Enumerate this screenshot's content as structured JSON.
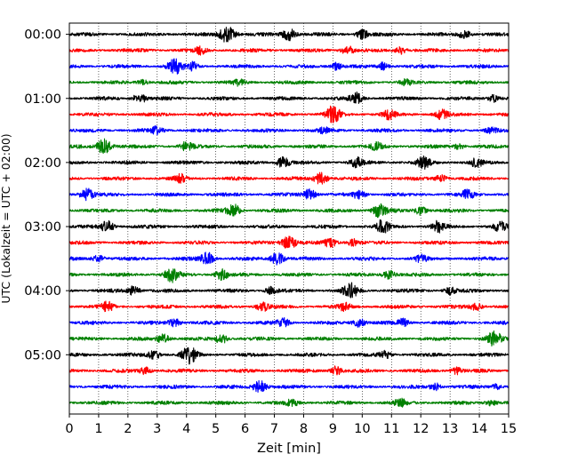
{
  "chart_data": {
    "type": "line",
    "title": "",
    "xlabel": "Zeit  [min]",
    "ylabel": "UTC (Lokalzeit = UTC + 02:00)",
    "xlim": [
      0,
      15
    ],
    "x_ticks": [
      0,
      1,
      2,
      3,
      4,
      5,
      6,
      7,
      8,
      9,
      10,
      11,
      12,
      13,
      14,
      15
    ],
    "x_tick_labels": [
      "0",
      "1",
      "2",
      "3",
      "4",
      "5",
      "6",
      "7",
      "8",
      "9",
      "10",
      "11",
      "12",
      "13",
      "14",
      "15"
    ],
    "ylim_rows": [
      -0.7,
      23.7
    ],
    "y_ticks": [
      {
        "row": 0,
        "label": "00:00"
      },
      {
        "row": 4,
        "label": "01:00"
      },
      {
        "row": 8,
        "label": "02:00"
      },
      {
        "row": 12,
        "label": "03:00"
      },
      {
        "row": 16,
        "label": "04:00"
      },
      {
        "row": 20,
        "label": "05:00"
      }
    ],
    "grid": "vertical dotted at each minute",
    "row_interval_minutes": 15,
    "color_cycle": [
      "#000000",
      "#ff0000",
      "#0000ff",
      "#008000"
    ],
    "series": [
      {
        "start": "00:00",
        "color": "#000000",
        "bursts": [
          [
            5.4,
            1.0
          ],
          [
            7.5,
            0.7
          ],
          [
            10.0,
            0.5
          ],
          [
            13.5,
            0.5
          ]
        ]
      },
      {
        "start": "00:15",
        "color": "#ff0000",
        "bursts": [
          [
            4.5,
            0.4
          ],
          [
            9.5,
            0.5
          ],
          [
            11.3,
            0.4
          ]
        ]
      },
      {
        "start": "00:30",
        "color": "#0000ff",
        "bursts": [
          [
            3.6,
            0.8
          ],
          [
            4.2,
            0.4
          ],
          [
            9.1,
            0.4
          ],
          [
            10.7,
            0.4
          ]
        ]
      },
      {
        "start": "00:45",
        "color": "#008000",
        "bursts": [
          [
            2.5,
            0.3
          ],
          [
            5.8,
            0.3
          ],
          [
            11.5,
            0.3
          ]
        ]
      },
      {
        "start": "01:00",
        "color": "#000000",
        "bursts": [
          [
            2.4,
            0.6
          ],
          [
            9.8,
            0.6
          ],
          [
            14.5,
            0.4
          ]
        ]
      },
      {
        "start": "01:15",
        "color": "#ff0000",
        "bursts": [
          [
            9.0,
            0.9
          ],
          [
            10.9,
            0.5
          ],
          [
            12.7,
            0.5
          ]
        ]
      },
      {
        "start": "01:30",
        "color": "#0000ff",
        "bursts": [
          [
            3.0,
            0.4
          ],
          [
            8.7,
            0.3
          ],
          [
            14.4,
            0.3
          ]
        ]
      },
      {
        "start": "01:45",
        "color": "#008000",
        "bursts": [
          [
            1.2,
            0.9
          ],
          [
            4.0,
            0.5
          ],
          [
            10.5,
            0.4
          ],
          [
            13.3,
            0.3
          ]
        ]
      },
      {
        "start": "02:00",
        "color": "#000000",
        "bursts": [
          [
            7.3,
            0.6
          ],
          [
            9.8,
            0.5
          ],
          [
            12.1,
            0.6
          ],
          [
            13.9,
            0.5
          ]
        ]
      },
      {
        "start": "02:15",
        "color": "#ff0000",
        "bursts": [
          [
            3.8,
            0.4
          ],
          [
            8.6,
            0.7
          ],
          [
            12.7,
            0.4
          ]
        ]
      },
      {
        "start": "02:30",
        "color": "#0000ff",
        "bursts": [
          [
            0.6,
            0.7
          ],
          [
            8.2,
            0.6
          ],
          [
            9.9,
            0.5
          ],
          [
            13.6,
            0.5
          ]
        ]
      },
      {
        "start": "02:45",
        "color": "#008000",
        "bursts": [
          [
            5.6,
            0.7
          ],
          [
            10.6,
            0.8
          ],
          [
            12.0,
            0.5
          ]
        ]
      },
      {
        "start": "03:00",
        "color": "#000000",
        "bursts": [
          [
            1.3,
            0.6
          ],
          [
            10.7,
            0.7
          ],
          [
            12.6,
            0.6
          ],
          [
            14.7,
            0.5
          ]
        ]
      },
      {
        "start": "03:15",
        "color": "#ff0000",
        "bursts": [
          [
            7.5,
            0.8
          ],
          [
            8.9,
            0.5
          ],
          [
            9.7,
            0.4
          ]
        ]
      },
      {
        "start": "03:30",
        "color": "#0000ff",
        "bursts": [
          [
            4.7,
            0.7
          ],
          [
            7.1,
            0.7
          ],
          [
            1.0,
            0.4
          ],
          [
            12.0,
            0.4
          ]
        ]
      },
      {
        "start": "03:45",
        "color": "#008000",
        "bursts": [
          [
            3.5,
            0.8
          ],
          [
            5.2,
            0.6
          ],
          [
            10.9,
            0.5
          ]
        ]
      },
      {
        "start": "04:00",
        "color": "#000000",
        "bursts": [
          [
            9.6,
            0.8
          ],
          [
            2.2,
            0.5
          ],
          [
            6.9,
            0.4
          ],
          [
            13.0,
            0.4
          ]
        ]
      },
      {
        "start": "04:15",
        "color": "#ff0000",
        "bursts": [
          [
            1.3,
            0.5
          ],
          [
            6.6,
            0.5
          ],
          [
            9.4,
            0.4
          ],
          [
            13.9,
            0.4
          ]
        ]
      },
      {
        "start": "04:30",
        "color": "#0000ff",
        "bursts": [
          [
            3.6,
            0.5
          ],
          [
            7.3,
            0.5
          ],
          [
            9.9,
            0.5
          ],
          [
            11.4,
            0.4
          ]
        ]
      },
      {
        "start": "04:45",
        "color": "#008000",
        "bursts": [
          [
            3.2,
            0.5
          ],
          [
            5.2,
            0.5
          ],
          [
            14.5,
            0.8
          ]
        ]
      },
      {
        "start": "05:00",
        "color": "#000000",
        "bursts": [
          [
            4.1,
            0.9
          ],
          [
            2.9,
            0.5
          ],
          [
            10.8,
            0.4
          ]
        ]
      },
      {
        "start": "05:15",
        "color": "#ff0000",
        "bursts": [
          [
            2.6,
            0.4
          ],
          [
            9.1,
            0.5
          ],
          [
            13.2,
            0.4
          ]
        ]
      },
      {
        "start": "05:30",
        "color": "#0000ff",
        "bursts": [
          [
            6.5,
            0.7
          ],
          [
            12.5,
            0.4
          ],
          [
            14.6,
            0.3
          ]
        ]
      },
      {
        "start": "05:45",
        "color": "#008000",
        "bursts": [
          [
            7.6,
            0.4
          ],
          [
            11.3,
            0.4
          ],
          [
            14.4,
            0.3
          ]
        ]
      }
    ]
  }
}
